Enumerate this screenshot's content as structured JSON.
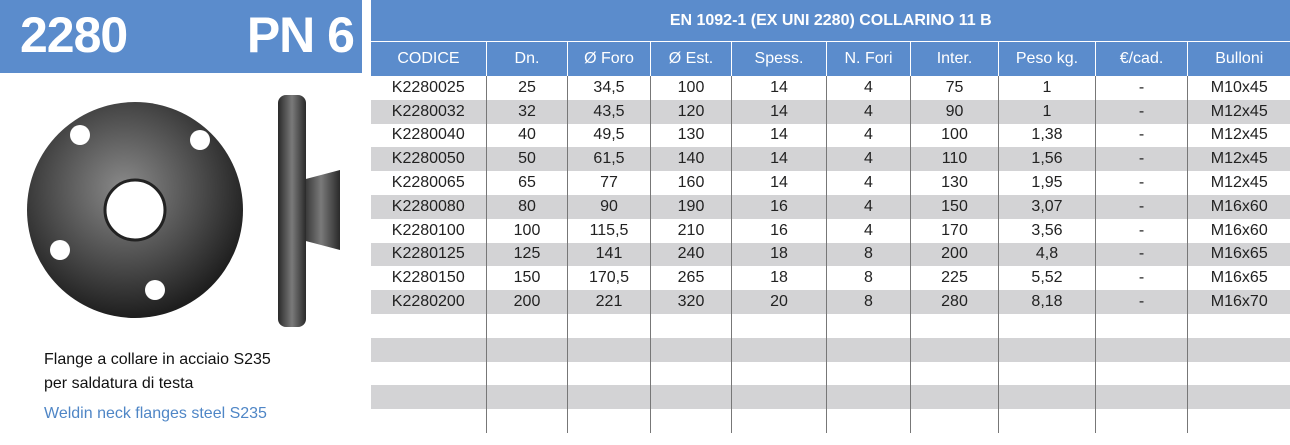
{
  "header": {
    "code": "2280",
    "pressure": "PN 6"
  },
  "description": {
    "lines": [
      "Flange a collare in acciaio S235",
      "per saldatura di testa"
    ],
    "english": "Weldin neck flanges steel S235"
  },
  "table": {
    "title": "EN 1092-1 (EX UNI 2280) COLLARINO 11 B",
    "columns": [
      "CODICE",
      "Dn.",
      "Ø Foro",
      "Ø Est.",
      "Spess.",
      "N. Fori",
      "Inter.",
      "Peso kg.",
      "€/cad.",
      "Bulloni"
    ],
    "rows": [
      [
        "K2280025",
        "25",
        "34,5",
        "100",
        "14",
        "4",
        "75",
        "1",
        "-",
        "M10x45"
      ],
      [
        "K2280032",
        "32",
        "43,5",
        "120",
        "14",
        "4",
        "90",
        "1",
        "-",
        "M12x45"
      ],
      [
        "K2280040",
        "40",
        "49,5",
        "130",
        "14",
        "4",
        "100",
        "1,38",
        "-",
        "M12x45"
      ],
      [
        "K2280050",
        "50",
        "61,5",
        "140",
        "14",
        "4",
        "110",
        "1,56",
        "-",
        "M12x45"
      ],
      [
        "K2280065",
        "65",
        "77",
        "160",
        "14",
        "4",
        "130",
        "1,95",
        "-",
        "M12x45"
      ],
      [
        "K2280080",
        "80",
        "90",
        "190",
        "16",
        "4",
        "150",
        "3,07",
        "-",
        "M16x60"
      ],
      [
        "K2280100",
        "100",
        "115,5",
        "210",
        "16",
        "4",
        "170",
        "3,56",
        "-",
        "M16x60"
      ],
      [
        "K2280125",
        "125",
        "141",
        "240",
        "18",
        "8",
        "200",
        "4,8",
        "-",
        "M16x65"
      ],
      [
        "K2280150",
        "150",
        "170,5",
        "265",
        "18",
        "8",
        "225",
        "5,52",
        "-",
        "M16x65"
      ],
      [
        "K2280200",
        "200",
        "221",
        "320",
        "20",
        "8",
        "280",
        "8,18",
        "-",
        "M16x70"
      ]
    ]
  }
}
